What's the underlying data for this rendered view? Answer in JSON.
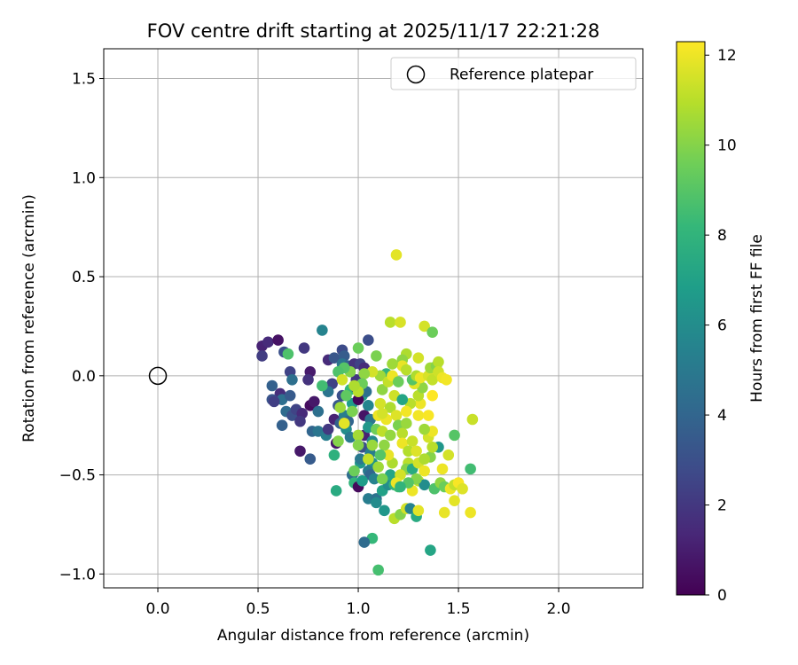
{
  "chart_data": {
    "type": "scatter",
    "title": "FOV centre drift starting at 2025/11/17 22:21:28",
    "xlabel": "Angular distance from reference (arcmin)",
    "ylabel": "Rotation from reference (arcmin)",
    "xlim": [
      -0.27,
      2.42
    ],
    "ylim": [
      -1.07,
      1.65
    ],
    "xticks": [
      0.0,
      0.5,
      1.0,
      1.5,
      2.0
    ],
    "xtick_labels": [
      "0.0",
      "0.5",
      "1.0",
      "1.5",
      "2.0"
    ],
    "yticks": [
      1.5,
      1.0,
      0.5,
      0.0,
      -0.5,
      -1.0
    ],
    "ytick_labels": [
      "1.5",
      "1.0",
      "0.5",
      "0.0",
      "−0.5",
      "−1.0"
    ],
    "grid": true,
    "legend": {
      "location": "upper-right",
      "label": "Reference platepar"
    },
    "reference_point": {
      "x": 0.0,
      "y": 0.0
    },
    "colorbar": {
      "label": "Hours from first FF file",
      "colormap": "viridis",
      "range": [
        0,
        12.3
      ],
      "ticks": [
        0,
        2,
        4,
        6,
        8,
        10,
        12
      ],
      "tick_labels": [
        "0",
        "2",
        "4",
        "6",
        "8",
        "10",
        "12"
      ]
    },
    "colormap_stops": [
      "#440154",
      "#482878",
      "#3e4a89",
      "#31688e",
      "#26828e",
      "#1f9e89",
      "#35b779",
      "#6ece58",
      "#b5de2b",
      "#fde725"
    ],
    "points": [
      [
        0.52,
        0.15,
        1.2
      ],
      [
        0.55,
        0.17,
        1.5
      ],
      [
        0.6,
        0.18,
        0.6
      ],
      [
        0.52,
        0.1,
        2.2
      ],
      [
        0.63,
        0.12,
        3.0
      ],
      [
        0.65,
        0.11,
        8.8
      ],
      [
        0.73,
        0.14,
        2.0
      ],
      [
        0.66,
        0.02,
        2.5
      ],
      [
        0.67,
        -0.02,
        4.5
      ],
      [
        0.57,
        -0.05,
        3.8
      ],
      [
        0.61,
        -0.09,
        1.6
      ],
      [
        0.57,
        -0.12,
        3.2
      ],
      [
        0.62,
        -0.12,
        4.5
      ],
      [
        0.58,
        -0.13,
        2.3
      ],
      [
        0.66,
        -0.1,
        3.5
      ],
      [
        0.64,
        -0.18,
        4.3
      ],
      [
        0.67,
        -0.2,
        3.0
      ],
      [
        0.62,
        -0.25,
        3.8
      ],
      [
        0.69,
        -0.17,
        2.5
      ],
      [
        0.72,
        -0.19,
        1.5
      ],
      [
        0.71,
        -0.23,
        2.0
      ],
      [
        0.76,
        0.02,
        0.9
      ],
      [
        0.75,
        -0.02,
        1.8
      ],
      [
        0.76,
        -0.15,
        0.4
      ],
      [
        0.78,
        -0.13,
        0.8
      ],
      [
        0.77,
        -0.28,
        4.0
      ],
      [
        0.8,
        -0.28,
        4.8
      ],
      [
        0.76,
        -0.42,
        3.5
      ],
      [
        0.71,
        -0.38,
        0.8
      ],
      [
        0.82,
        0.23,
        5.5
      ],
      [
        0.85,
        0.08,
        1.5
      ],
      [
        0.88,
        0.09,
        3.3
      ],
      [
        0.92,
        0.13,
        2.8
      ],
      [
        0.93,
        0.1,
        3.6
      ],
      [
        0.92,
        0.06,
        4.8
      ],
      [
        0.95,
        0.05,
        3.8
      ],
      [
        0.98,
        0.06,
        1.8
      ],
      [
        1.01,
        0.06,
        2.4
      ],
      [
        1.05,
        0.18,
        2.9
      ],
      [
        1.03,
        0.04,
        1.5
      ],
      [
        1.0,
        0.14,
        9.5
      ],
      [
        0.87,
        -0.04,
        2.4
      ],
      [
        0.85,
        -0.08,
        4.8
      ],
      [
        0.82,
        -0.05,
        8.5
      ],
      [
        0.8,
        -0.18,
        4.5
      ],
      [
        0.84,
        -0.3,
        5.2
      ],
      [
        0.88,
        -0.4,
        7.8
      ],
      [
        0.89,
        -0.34,
        0.8
      ],
      [
        0.89,
        -0.58,
        7.5
      ],
      [
        0.85,
        -0.27,
        2.0
      ],
      [
        0.88,
        -0.22,
        1.2
      ],
      [
        0.91,
        -0.24,
        3.8
      ],
      [
        0.9,
        -0.15,
        3.4
      ],
      [
        0.92,
        -0.1,
        3.0
      ],
      [
        0.93,
        -0.2,
        5.2
      ],
      [
        0.95,
        -0.23,
        4.0
      ],
      [
        0.94,
        -0.27,
        6.0
      ],
      [
        0.96,
        -0.31,
        5.0
      ],
      [
        0.97,
        -0.5,
        4.4
      ],
      [
        0.98,
        -0.54,
        8.0
      ],
      [
        1.0,
        -0.56,
        0.3
      ],
      [
        1.01,
        -0.44,
        6.5
      ],
      [
        1.01,
        -0.42,
        5.0
      ],
      [
        1.02,
        -0.36,
        3.0
      ],
      [
        1.03,
        -0.3,
        1.2
      ],
      [
        1.03,
        -0.2,
        0.7
      ],
      [
        1.02,
        -0.1,
        7.0
      ],
      [
        1.04,
        -0.08,
        4.5
      ],
      [
        0.99,
        -0.02,
        2.0
      ],
      [
        0.97,
        -0.14,
        6.8
      ],
      [
        0.96,
        -0.07,
        8.2
      ],
      [
        0.99,
        -0.06,
        1.0
      ],
      [
        1.0,
        -0.12,
        0.2
      ],
      [
        1.05,
        -0.15,
        5.6
      ],
      [
        1.06,
        -0.22,
        4.8
      ],
      [
        1.05,
        -0.26,
        6.5
      ],
      [
        1.07,
        -0.33,
        5.8
      ],
      [
        1.06,
        -0.39,
        5.2
      ],
      [
        1.07,
        -0.44,
        6.3
      ],
      [
        1.05,
        -0.48,
        5.0
      ],
      [
        1.06,
        -0.5,
        4.0
      ],
      [
        1.08,
        -0.52,
        5.5
      ],
      [
        1.05,
        -0.62,
        5.2
      ],
      [
        1.09,
        -0.62,
        4.6
      ],
      [
        1.09,
        -0.64,
        5.9
      ],
      [
        1.07,
        -0.82,
        8.2
      ],
      [
        1.03,
        -0.84,
        4.3
      ],
      [
        1.1,
        -0.98,
        8.6
      ],
      [
        1.12,
        -0.58,
        7.0
      ],
      [
        1.13,
        -0.68,
        6.5
      ],
      [
        1.15,
        -0.55,
        6.0
      ],
      [
        1.16,
        -0.5,
        7.2
      ],
      [
        1.18,
        -0.55,
        8.0
      ],
      [
        1.2,
        -0.56,
        8.5
      ],
      [
        1.18,
        -0.72,
        11.0
      ],
      [
        1.21,
        -0.7,
        10.0
      ],
      [
        1.24,
        -0.67,
        11.5
      ],
      [
        1.26,
        -0.67,
        5.5
      ],
      [
        1.29,
        -0.71,
        7.5
      ],
      [
        1.3,
        -0.68,
        11.8
      ],
      [
        1.27,
        -0.58,
        12.0
      ],
      [
        1.3,
        -0.53,
        11.0
      ],
      [
        1.33,
        -0.55,
        6.0
      ],
      [
        1.36,
        -0.88,
        7.2
      ],
      [
        1.38,
        -0.57,
        8.8
      ],
      [
        1.41,
        -0.54,
        10.2
      ],
      [
        1.43,
        -0.56,
        9.5
      ],
      [
        1.46,
        -0.57,
        12.0
      ],
      [
        1.48,
        -0.63,
        11.8
      ],
      [
        1.48,
        -0.55,
        11.2
      ],
      [
        1.5,
        -0.54,
        12.2
      ],
      [
        1.52,
        -0.57,
        11.7
      ],
      [
        1.43,
        -0.69,
        11.9
      ],
      [
        1.56,
        -0.69,
        12.0
      ],
      [
        1.56,
        -0.47,
        8.5
      ],
      [
        1.57,
        -0.22,
        11.3
      ],
      [
        1.48,
        -0.3,
        9.0
      ],
      [
        1.45,
        -0.4,
        11.5
      ],
      [
        1.42,
        -0.47,
        12.0
      ],
      [
        1.4,
        -0.36,
        6.5
      ],
      [
        1.36,
        -0.41,
        10.0
      ],
      [
        1.37,
        -0.36,
        11.0
      ],
      [
        1.35,
        -0.31,
        11.5
      ],
      [
        1.37,
        -0.28,
        12.0
      ],
      [
        1.33,
        -0.27,
        10.5
      ],
      [
        1.3,
        -0.2,
        12.1
      ],
      [
        1.31,
        -0.14,
        12.0
      ],
      [
        1.3,
        -0.1,
        11.0
      ],
      [
        1.32,
        -0.06,
        10.2
      ],
      [
        1.28,
        -0.04,
        11.8
      ],
      [
        1.27,
        -0.02,
        9.0
      ],
      [
        1.29,
        0.0,
        10.8
      ],
      [
        1.31,
        -0.01,
        12.0
      ],
      [
        1.35,
        0.0,
        11.6
      ],
      [
        1.37,
        -0.02,
        11.2
      ],
      [
        1.37,
        -0.1,
        12.3
      ],
      [
        1.36,
        0.04,
        10.5
      ],
      [
        1.39,
        0.05,
        10.0
      ],
      [
        1.4,
        0.07,
        11.0
      ],
      [
        1.4,
        0.02,
        11.4
      ],
      [
        1.42,
        -0.01,
        12.0
      ],
      [
        1.44,
        -0.02,
        12.1
      ],
      [
        1.3,
        0.09,
        11.5
      ],
      [
        1.24,
        0.11,
        10.8
      ],
      [
        1.22,
        0.08,
        10.2
      ],
      [
        1.22,
        0.05,
        11.9
      ],
      [
        1.24,
        0.03,
        11.0
      ],
      [
        1.17,
        0.06,
        10.5
      ],
      [
        1.16,
        0.27,
        11.0
      ],
      [
        1.21,
        0.27,
        11.6
      ],
      [
        1.19,
        0.61,
        11.8
      ],
      [
        1.33,
        0.25,
        11.5
      ],
      [
        1.37,
        0.22,
        9.5
      ],
      [
        1.14,
        0.01,
        8.0
      ],
      [
        1.11,
        0.0,
        10.5
      ],
      [
        1.09,
        0.1,
        9.8
      ],
      [
        1.07,
        0.02,
        11.5
      ],
      [
        1.03,
        0.01,
        10.2
      ],
      [
        1.02,
        -0.04,
        9.5
      ],
      [
        1.0,
        -0.08,
        11.0
      ],
      [
        0.98,
        -0.05,
        10.8
      ],
      [
        0.96,
        0.02,
        10.0
      ],
      [
        0.93,
        0.04,
        9.0
      ],
      [
        0.9,
        0.02,
        8.8
      ],
      [
        0.92,
        -0.02,
        11.5
      ],
      [
        0.91,
        -0.16,
        10.5
      ],
      [
        0.93,
        -0.24,
        11.8
      ],
      [
        0.9,
        -0.33,
        10.0
      ],
      [
        0.94,
        -0.1,
        9.2
      ],
      [
        0.97,
        -0.18,
        9.8
      ],
      [
        1.0,
        -0.3,
        10.6
      ],
      [
        1.0,
        -0.35,
        10.0
      ],
      [
        0.98,
        -0.48,
        9.5
      ],
      [
        1.02,
        -0.53,
        6.8
      ],
      [
        1.05,
        -0.42,
        11.2
      ],
      [
        1.07,
        -0.35,
        10.4
      ],
      [
        1.09,
        -0.27,
        9.6
      ],
      [
        1.1,
        -0.2,
        12.0
      ],
      [
        1.11,
        -0.14,
        11.5
      ],
      [
        1.12,
        -0.07,
        10.2
      ],
      [
        1.15,
        -0.03,
        11.2
      ],
      [
        1.17,
        0.0,
        12.0
      ],
      [
        1.2,
        -0.03,
        9.5
      ],
      [
        1.18,
        -0.1,
        11.4
      ],
      [
        1.16,
        -0.16,
        10.8
      ],
      [
        1.19,
        -0.2,
        11.7
      ],
      [
        1.2,
        -0.25,
        9.8
      ],
      [
        1.22,
        -0.29,
        11.0
      ],
      [
        1.24,
        -0.24,
        10.4
      ],
      [
        1.22,
        -0.34,
        12.0
      ],
      [
        1.25,
        -0.38,
        10.9
      ],
      [
        1.27,
        -0.33,
        11.3
      ],
      [
        1.29,
        -0.38,
        11.7
      ],
      [
        1.25,
        -0.44,
        11.0
      ],
      [
        1.24,
        -0.47,
        10.0
      ],
      [
        1.21,
        -0.5,
        11.5
      ],
      [
        1.19,
        -0.54,
        12.0
      ],
      [
        1.17,
        -0.44,
        10.8
      ],
      [
        1.15,
        -0.4,
        11.9
      ],
      [
        1.13,
        -0.35,
        10.2
      ],
      [
        1.12,
        -0.28,
        11.1
      ],
      [
        1.14,
        -0.22,
        12.0
      ],
      [
        1.16,
        -0.3,
        10.3
      ],
      [
        1.11,
        -0.4,
        9.0
      ],
      [
        1.1,
        -0.46,
        10.5
      ],
      [
        1.12,
        -0.52,
        9.8
      ],
      [
        1.27,
        -0.47,
        7.5
      ],
      [
        1.3,
        -0.44,
        11.5
      ],
      [
        1.33,
        -0.48,
        12.0
      ],
      [
        1.29,
        -0.52,
        10.0
      ],
      [
        1.25,
        -0.54,
        9.0
      ],
      [
        1.21,
        -0.56,
        8.0
      ],
      [
        1.33,
        -0.42,
        10.8
      ],
      [
        1.35,
        -0.2,
        12.2
      ],
      [
        1.26,
        -0.14,
        11.0
      ],
      [
        1.22,
        -0.12,
        7.2
      ],
      [
        1.24,
        -0.18,
        12.1
      ],
      [
        1.12,
        -0.19,
        11.5
      ]
    ]
  }
}
